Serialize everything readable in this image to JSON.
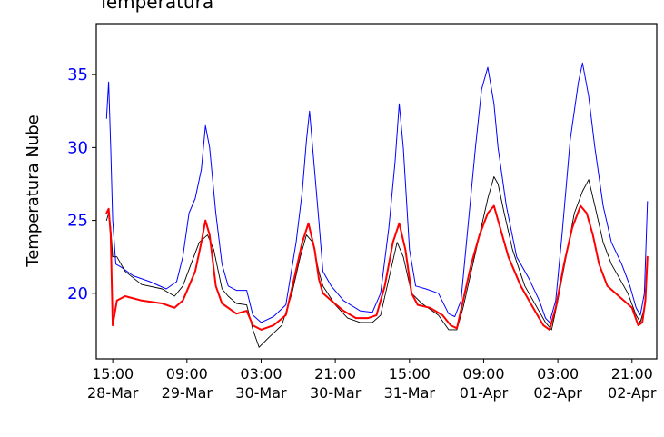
{
  "chart_data": {
    "type": "line",
    "title": "Temperatura",
    "ylabel": "Temperatura Nube",
    "xlabel": "",
    "ylim": [
      15.5,
      38.5
    ],
    "yticks": [
      20,
      25,
      30,
      35
    ],
    "xlim": [
      "2018-03-28T11:00",
      "2018-04-03T03:00"
    ],
    "xticks": [
      {
        "x": "2018-03-28T15:00",
        "time": "15:00",
        "date": "28-Mar"
      },
      {
        "x": "2018-03-29T09:00",
        "time": "09:00",
        "date": "29-Mar"
      },
      {
        "x": "2018-03-30T03:00",
        "time": "03:00",
        "date": "30-Mar"
      },
      {
        "x": "2018-03-30T21:00",
        "time": "21:00",
        "date": "30-Mar"
      },
      {
        "x": "2018-03-31T15:00",
        "time": "15:00",
        "date": "31-Mar"
      },
      {
        "x": "2018-04-01T09:00",
        "time": "09:00",
        "date": "01-Apr"
      },
      {
        "x": "2018-04-02T03:00",
        "time": "03:00",
        "date": "02-Apr"
      },
      {
        "x": "2018-04-02T21:00",
        "time": "21:00",
        "date": "02-Apr"
      }
    ],
    "grid": false,
    "legend": null,
    "series": [
      {
        "color": "#0000ff",
        "width": 1.0,
        "points": [
          [
            "2018-03-28T13:30",
            32.0
          ],
          [
            "2018-03-28T14:00",
            34.5
          ],
          [
            "2018-03-28T14:30",
            30.0
          ],
          [
            "2018-03-28T15:00",
            25.0
          ],
          [
            "2018-03-28T15:45",
            22.0
          ],
          [
            "2018-03-28T17:00",
            21.8
          ],
          [
            "2018-03-28T20:00",
            21.2
          ],
          [
            "2018-03-29T00:00",
            20.8
          ],
          [
            "2018-03-29T04:00",
            20.3
          ],
          [
            "2018-03-29T06:30",
            20.8
          ],
          [
            "2018-03-29T08:00",
            22.5
          ],
          [
            "2018-03-29T09:30",
            25.5
          ],
          [
            "2018-03-29T11:00",
            26.5
          ],
          [
            "2018-03-29T12:30",
            28.5
          ],
          [
            "2018-03-29T13:30",
            31.5
          ],
          [
            "2018-03-29T14:30",
            30.0
          ],
          [
            "2018-03-29T16:00",
            25.5
          ],
          [
            "2018-03-29T17:30",
            22.0
          ],
          [
            "2018-03-29T19:00",
            20.5
          ],
          [
            "2018-03-29T21:00",
            20.2
          ],
          [
            "2018-03-29T23:30",
            20.2
          ],
          [
            "2018-03-30T01:00",
            18.5
          ],
          [
            "2018-03-30T03:00",
            18.0
          ],
          [
            "2018-03-30T06:00",
            18.4
          ],
          [
            "2018-03-30T09:00",
            19.2
          ],
          [
            "2018-03-30T11:30",
            23.5
          ],
          [
            "2018-03-30T13:00",
            27.0
          ],
          [
            "2018-03-30T14:00",
            30.5
          ],
          [
            "2018-03-30T14:45",
            32.5
          ],
          [
            "2018-03-30T15:30",
            30.0
          ],
          [
            "2018-03-30T17:00",
            25.0
          ],
          [
            "2018-03-30T18:00",
            21.5
          ],
          [
            "2018-03-30T20:00",
            20.5
          ],
          [
            "2018-03-30T23:00",
            19.5
          ],
          [
            "2018-03-31T03:00",
            18.8
          ],
          [
            "2018-03-31T06:00",
            18.7
          ],
          [
            "2018-03-31T08:00",
            20.0
          ],
          [
            "2018-03-31T10:00",
            24.5
          ],
          [
            "2018-03-31T11:30",
            29.0
          ],
          [
            "2018-03-31T12:30",
            33.0
          ],
          [
            "2018-03-31T13:30",
            30.0
          ],
          [
            "2018-03-31T15:00",
            23.0
          ],
          [
            "2018-03-31T16:30",
            20.5
          ],
          [
            "2018-03-31T19:00",
            20.3
          ],
          [
            "2018-03-31T22:00",
            20.0
          ],
          [
            "2018-04-01T00:30",
            18.6
          ],
          [
            "2018-04-01T02:00",
            18.4
          ],
          [
            "2018-04-01T03:30",
            19.5
          ],
          [
            "2018-04-01T05:00",
            24.0
          ],
          [
            "2018-04-01T07:00",
            30.0
          ],
          [
            "2018-04-01T08:30",
            34.0
          ],
          [
            "2018-04-01T10:00",
            35.5
          ],
          [
            "2018-04-01T11:30",
            33.0
          ],
          [
            "2018-04-01T12:30",
            30.0
          ],
          [
            "2018-04-01T14:30",
            26.0
          ],
          [
            "2018-04-01T17:00",
            22.5
          ],
          [
            "2018-04-01T20:00",
            21.0
          ],
          [
            "2018-04-01T22:30",
            19.5
          ],
          [
            "2018-04-02T00:00",
            18.3
          ],
          [
            "2018-04-02T01:00",
            18.0
          ],
          [
            "2018-04-02T02:30",
            19.5
          ],
          [
            "2018-04-02T04:00",
            24.0
          ],
          [
            "2018-04-02T06:00",
            30.5
          ],
          [
            "2018-04-02T08:00",
            34.5
          ],
          [
            "2018-04-02T09:00",
            35.8
          ],
          [
            "2018-04-02T10:30",
            33.5
          ],
          [
            "2018-04-02T12:00",
            30.0
          ],
          [
            "2018-04-02T14:00",
            26.0
          ],
          [
            "2018-04-02T16:00",
            23.5
          ],
          [
            "2018-04-02T18:30",
            22.0
          ],
          [
            "2018-04-02T20:30",
            20.5
          ],
          [
            "2018-04-02T22:00",
            19.0
          ],
          [
            "2018-04-02T23:00",
            18.5
          ],
          [
            "2018-04-03T00:00",
            20.0
          ],
          [
            "2018-04-03T00:45",
            26.3
          ]
        ]
      },
      {
        "color": "#000000",
        "width": 0.9,
        "points": [
          [
            "2018-03-28T13:30",
            25.0
          ],
          [
            "2018-03-28T14:00",
            25.5
          ],
          [
            "2018-03-28T14:30",
            24.5
          ],
          [
            "2018-03-28T15:00",
            22.5
          ],
          [
            "2018-03-28T16:00",
            22.5
          ],
          [
            "2018-03-28T18:00",
            21.5
          ],
          [
            "2018-03-28T22:00",
            20.6
          ],
          [
            "2018-03-29T03:00",
            20.3
          ],
          [
            "2018-03-29T06:00",
            19.8
          ],
          [
            "2018-03-29T08:00",
            20.5
          ],
          [
            "2018-03-29T10:00",
            22.0
          ],
          [
            "2018-03-29T12:00",
            23.5
          ],
          [
            "2018-03-29T14:00",
            24.0
          ],
          [
            "2018-03-29T15:30",
            23.0
          ],
          [
            "2018-03-29T17:30",
            20.3
          ],
          [
            "2018-03-29T19:00",
            19.8
          ],
          [
            "2018-03-29T21:00",
            19.3
          ],
          [
            "2018-03-29T23:30",
            19.2
          ],
          [
            "2018-03-30T01:00",
            17.5
          ],
          [
            "2018-03-30T02:30",
            16.3
          ],
          [
            "2018-03-30T05:00",
            17.0
          ],
          [
            "2018-03-30T08:00",
            17.8
          ],
          [
            "2018-03-30T10:30",
            20.0
          ],
          [
            "2018-03-30T12:30",
            22.5
          ],
          [
            "2018-03-30T14:00",
            24.0
          ],
          [
            "2018-03-30T15:30",
            23.5
          ],
          [
            "2018-03-30T17:00",
            21.5
          ],
          [
            "2018-03-30T18:00",
            20.5
          ],
          [
            "2018-03-30T21:00",
            19.2
          ],
          [
            "2018-03-31T00:00",
            18.3
          ],
          [
            "2018-03-31T03:00",
            18.0
          ],
          [
            "2018-03-31T06:00",
            18.0
          ],
          [
            "2018-03-31T08:00",
            18.5
          ],
          [
            "2018-03-31T10:00",
            21.0
          ],
          [
            "2018-03-31T12:00",
            23.5
          ],
          [
            "2018-03-31T13:30",
            22.5
          ],
          [
            "2018-03-31T15:30",
            20.0
          ],
          [
            "2018-03-31T18:00",
            19.3
          ],
          [
            "2018-03-31T22:00",
            18.5
          ],
          [
            "2018-04-01T00:30",
            17.5
          ],
          [
            "2018-04-01T02:30",
            17.5
          ],
          [
            "2018-04-01T04:00",
            19.0
          ],
          [
            "2018-04-01T06:00",
            21.5
          ],
          [
            "2018-04-01T08:00",
            24.0
          ],
          [
            "2018-04-01T10:00",
            26.5
          ],
          [
            "2018-04-01T11:30",
            28.0
          ],
          [
            "2018-04-01T12:30",
            27.5
          ],
          [
            "2018-04-01T14:00",
            25.5
          ],
          [
            "2018-04-01T16:00",
            23.0
          ],
          [
            "2018-04-01T19:00",
            20.5
          ],
          [
            "2018-04-01T22:00",
            19.0
          ],
          [
            "2018-04-02T00:00",
            18.0
          ],
          [
            "2018-04-02T01:30",
            17.5
          ],
          [
            "2018-04-02T03:00",
            19.5
          ],
          [
            "2018-04-02T05:00",
            22.5
          ],
          [
            "2018-04-02T07:00",
            25.5
          ],
          [
            "2018-04-02T09:00",
            27.0
          ],
          [
            "2018-04-02T10:30",
            27.8
          ],
          [
            "2018-04-02T12:00",
            26.0
          ],
          [
            "2018-04-02T14:00",
            23.5
          ],
          [
            "2018-04-02T16:00",
            22.0
          ],
          [
            "2018-04-02T18:00",
            21.0
          ],
          [
            "2018-04-02T20:00",
            20.0
          ],
          [
            "2018-04-02T22:00",
            18.5
          ],
          [
            "2018-04-02T23:00",
            18.0
          ],
          [
            "2018-04-03T00:00",
            19.0
          ],
          [
            "2018-04-03T00:45",
            22.0
          ]
        ]
      },
      {
        "color": "#ff0000",
        "width": 2.0,
        "points": [
          [
            "2018-03-28T13:30",
            25.5
          ],
          [
            "2018-03-28T14:00",
            25.8
          ],
          [
            "2018-03-28T14:30",
            24.0
          ],
          [
            "2018-03-28T15:00",
            17.8
          ],
          [
            "2018-03-28T16:00",
            19.5
          ],
          [
            "2018-03-28T18:00",
            19.8
          ],
          [
            "2018-03-28T22:00",
            19.5
          ],
          [
            "2018-03-29T03:00",
            19.3
          ],
          [
            "2018-03-29T06:00",
            19.0
          ],
          [
            "2018-03-29T08:00",
            19.5
          ],
          [
            "2018-03-29T09:30",
            20.5
          ],
          [
            "2018-03-29T11:00",
            21.5
          ],
          [
            "2018-03-29T12:30",
            23.5
          ],
          [
            "2018-03-29T13:30",
            25.0
          ],
          [
            "2018-03-29T14:30",
            24.0
          ],
          [
            "2018-03-29T16:00",
            20.5
          ],
          [
            "2018-03-29T17:30",
            19.3
          ],
          [
            "2018-03-29T19:00",
            19.0
          ],
          [
            "2018-03-29T21:00",
            18.6
          ],
          [
            "2018-03-29T23:30",
            18.8
          ],
          [
            "2018-03-30T01:00",
            17.8
          ],
          [
            "2018-03-30T03:00",
            17.5
          ],
          [
            "2018-03-30T06:00",
            17.8
          ],
          [
            "2018-03-30T09:00",
            18.5
          ],
          [
            "2018-03-30T11:00",
            21.0
          ],
          [
            "2018-03-30T13:00",
            23.5
          ],
          [
            "2018-03-30T14:30",
            24.8
          ],
          [
            "2018-03-30T16:00",
            23.0
          ],
          [
            "2018-03-30T17:00",
            21.0
          ],
          [
            "2018-03-30T18:00",
            20.0
          ],
          [
            "2018-03-30T20:00",
            19.5
          ],
          [
            "2018-03-30T23:00",
            18.8
          ],
          [
            "2018-03-31T02:00",
            18.3
          ],
          [
            "2018-03-31T05:00",
            18.3
          ],
          [
            "2018-03-31T07:00",
            18.5
          ],
          [
            "2018-03-31T09:00",
            20.5
          ],
          [
            "2018-03-31T11:00",
            23.5
          ],
          [
            "2018-03-31T12:30",
            24.8
          ],
          [
            "2018-03-31T14:00",
            23.0
          ],
          [
            "2018-03-31T15:30",
            20.0
          ],
          [
            "2018-03-31T17:00",
            19.2
          ],
          [
            "2018-03-31T20:00",
            19.0
          ],
          [
            "2018-03-31T23:00",
            18.5
          ],
          [
            "2018-04-01T01:00",
            17.8
          ],
          [
            "2018-04-01T02:30",
            17.6
          ],
          [
            "2018-04-01T04:00",
            19.5
          ],
          [
            "2018-04-01T06:00",
            22.0
          ],
          [
            "2018-04-01T08:00",
            24.0
          ],
          [
            "2018-04-01T10:00",
            25.5
          ],
          [
            "2018-04-01T11:30",
            26.0
          ],
          [
            "2018-04-01T13:00",
            24.5
          ],
          [
            "2018-04-01T15:00",
            22.5
          ],
          [
            "2018-04-01T18:00",
            20.5
          ],
          [
            "2018-04-01T21:00",
            19.0
          ],
          [
            "2018-04-01T23:30",
            17.8
          ],
          [
            "2018-04-02T01:00",
            17.5
          ],
          [
            "2018-04-02T02:30",
            19.0
          ],
          [
            "2018-04-02T04:30",
            22.0
          ],
          [
            "2018-04-02T06:30",
            24.5
          ],
          [
            "2018-04-02T08:30",
            26.0
          ],
          [
            "2018-04-02T10:00",
            25.5
          ],
          [
            "2018-04-02T11:30",
            24.0
          ],
          [
            "2018-04-02T13:00",
            22.0
          ],
          [
            "2018-04-02T15:00",
            20.5
          ],
          [
            "2018-04-02T17:00",
            20.0
          ],
          [
            "2018-04-02T19:00",
            19.5
          ],
          [
            "2018-04-02T21:00",
            19.0
          ],
          [
            "2018-04-02T22:30",
            17.8
          ],
          [
            "2018-04-02T23:30",
            18.0
          ],
          [
            "2018-04-03T00:15",
            19.5
          ],
          [
            "2018-04-03T00:45",
            22.5
          ]
        ]
      }
    ]
  }
}
